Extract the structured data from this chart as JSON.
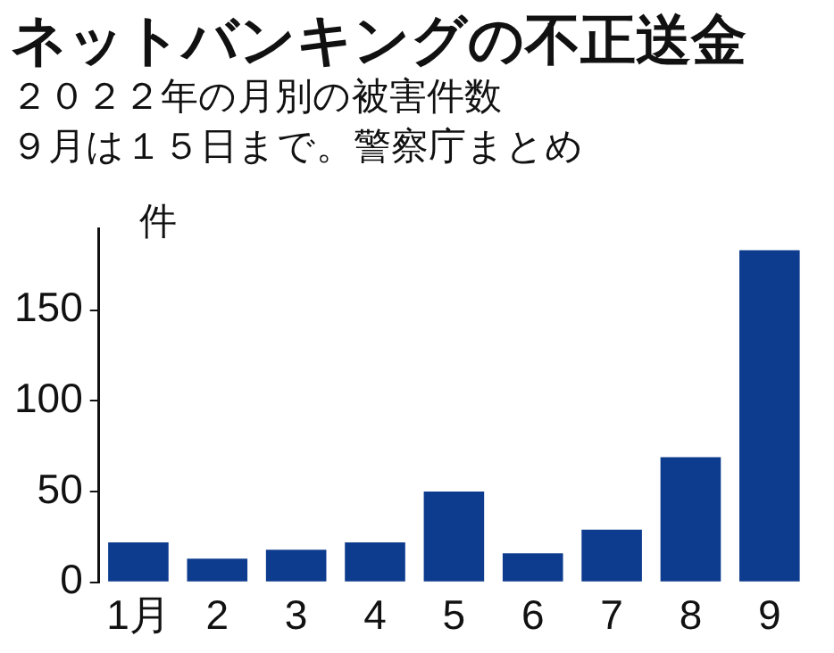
{
  "chart_data": {
    "type": "bar",
    "title": "ネットバンキングの不正送金",
    "subtitle": "２０２２年の月別の被害件数",
    "annotations": [
      "９月は１５日まで。警察庁まとめ"
    ],
    "ylabel": "件",
    "categories": [
      "1月",
      "2",
      "3",
      "4",
      "5",
      "6",
      "7",
      "8",
      "9"
    ],
    "values": [
      22,
      13,
      18,
      22,
      50,
      16,
      29,
      69,
      183
    ],
    "color": "#0d3b8e",
    "ylim": [
      0,
      195
    ],
    "yticks": [
      0,
      50,
      100,
      150
    ],
    "grid": false,
    "legend": false
  }
}
